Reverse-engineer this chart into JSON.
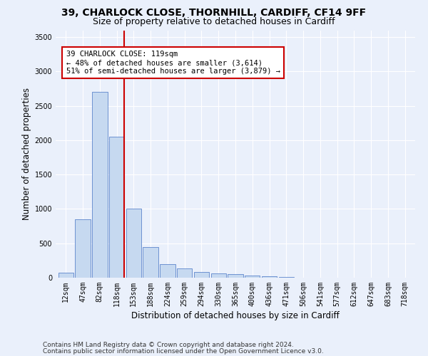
{
  "title_line1": "39, CHARLOCK CLOSE, THORNHILL, CARDIFF, CF14 9FF",
  "title_line2": "Size of property relative to detached houses in Cardiff",
  "xlabel": "Distribution of detached houses by size in Cardiff",
  "ylabel": "Number of detached properties",
  "categories": [
    "12sqm",
    "47sqm",
    "82sqm",
    "118sqm",
    "153sqm",
    "188sqm",
    "224sqm",
    "259sqm",
    "294sqm",
    "330sqm",
    "365sqm",
    "400sqm",
    "436sqm",
    "471sqm",
    "506sqm",
    "541sqm",
    "577sqm",
    "612sqm",
    "647sqm",
    "683sqm",
    "718sqm"
  ],
  "values": [
    75,
    850,
    2700,
    2050,
    1000,
    450,
    200,
    130,
    80,
    60,
    50,
    35,
    20,
    10,
    5,
    3,
    2,
    1,
    1,
    0,
    0
  ],
  "bar_color": "#c6d9f0",
  "bar_edge_color": "#4472c4",
  "red_line_index": 3,
  "red_line_color": "#cc0000",
  "annotation_line1": "39 CHARLOCK CLOSE: 119sqm",
  "annotation_line2": "← 48% of detached houses are smaller (3,614)",
  "annotation_line3": "51% of semi-detached houses are larger (3,879) →",
  "annotation_box_color": "#ffffff",
  "annotation_box_edge_color": "#cc0000",
  "ylim": [
    0,
    3600
  ],
  "yticks": [
    0,
    500,
    1000,
    1500,
    2000,
    2500,
    3000,
    3500
  ],
  "footer_line1": "Contains HM Land Registry data © Crown copyright and database right 2024.",
  "footer_line2": "Contains public sector information licensed under the Open Government Licence v3.0.",
  "bg_color": "#eaf0fb",
  "plot_bg_color": "#eaf0fb",
  "grid_color": "#ffffff",
  "title_fontsize": 10,
  "subtitle_fontsize": 9,
  "axis_label_fontsize": 8.5,
  "tick_fontsize": 7,
  "annot_fontsize": 7.5,
  "footer_fontsize": 6.5
}
